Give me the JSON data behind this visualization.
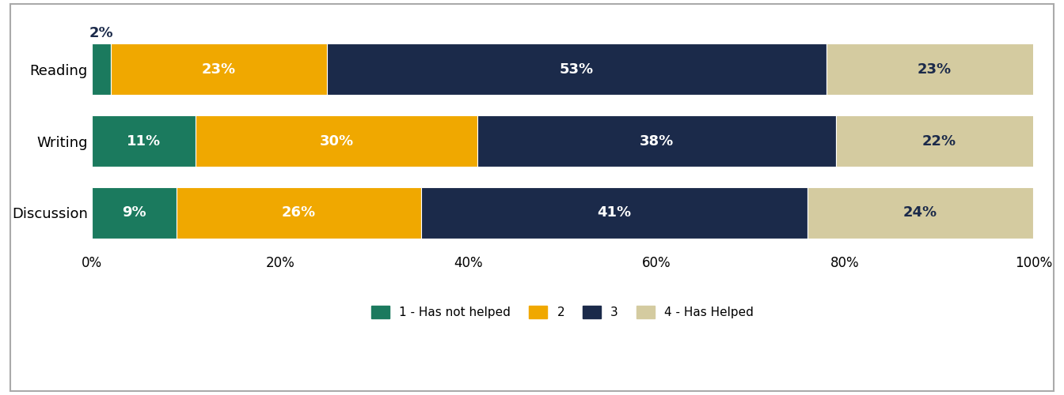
{
  "categories": [
    "Reading",
    "Writing",
    "Discussion"
  ],
  "series": {
    "1 - Has not helped": [
      2,
      11,
      9
    ],
    "2": [
      23,
      30,
      26
    ],
    "3": [
      53,
      38,
      41
    ],
    "4 - Has Helped": [
      23,
      22,
      24
    ]
  },
  "colors": {
    "1 - Has not helped": "#1b7a5e",
    "2": "#f0a800",
    "3": "#1b2a4a",
    "4 - Has Helped": "#d4cba0"
  },
  "label_color_dark": "#1b2a4a",
  "label_color_light": "#ffffff",
  "bar_height": 0.72,
  "xlim": [
    0,
    100
  ],
  "xticks": [
    0,
    20,
    40,
    60,
    80,
    100
  ],
  "xticklabels": [
    "0%",
    "20%",
    "40%",
    "60%",
    "80%",
    "100%"
  ],
  "background_color": "#ffffff",
  "font_size_bar_label": 13,
  "font_size_axis": 12,
  "font_size_legend": 11,
  "annotation_2pct": "2%"
}
